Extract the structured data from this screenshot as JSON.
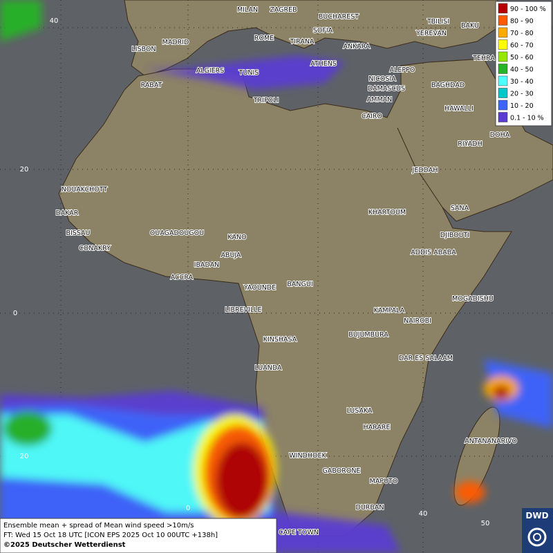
{
  "legend": {
    "items": [
      {
        "label": "90 - 100 %",
        "color": "#b40000"
      },
      {
        "label": "80 - 90",
        "color": "#ff5a00"
      },
      {
        "label": "70 - 80",
        "color": "#ffaa00"
      },
      {
        "label": "60 - 70",
        "color": "#ffff00"
      },
      {
        "label": "50 - 60",
        "color": "#96e600"
      },
      {
        "label": "40 - 50",
        "color": "#28b428"
      },
      {
        "label": "30 - 40",
        "color": "#50ffff"
      },
      {
        "label": "20 - 30",
        "color": "#00c8c8"
      },
      {
        "label": "10 - 20",
        "color": "#3c64ff"
      },
      {
        "label": "0.1 - 10 %",
        "color": "#5a3cd2"
      }
    ]
  },
  "cities": [
    "MILAN",
    "ZAGREB",
    "BUCHAREST",
    "BAKU",
    "TBILISI",
    "YEREVAN",
    "TEHRA",
    "MADRID",
    "LISBON",
    "ROME",
    "SOFIA",
    "TIRANA",
    "ANKARA",
    "ATHENS",
    "ALGIERS",
    "TUNIS",
    "RABAT",
    "ALEPPO",
    "NICOSIA",
    "BAGHDAD",
    "DAMASCUS",
    "AMMAN",
    "HAWALLI",
    "DOHA",
    "TRIPOLI",
    "CAIRO",
    "RIYADH",
    "JEDDAH",
    "NOUAKCHOTT",
    "DAKAR",
    "BISSAU",
    "CONAKRY",
    "OUAGADOUGOU",
    "KANO",
    "ABUJA",
    "IBADAN",
    "ACCRA",
    "YAOUNDE",
    "BANGUI",
    "KHARTOUM",
    "SANA",
    "DJIBOUTI",
    "ADDIS ABABA",
    "MOGADISHU",
    "LIBREVILLE",
    "KAMPALA",
    "NAIROBI",
    "KINSHASA",
    "BUJUMBURA",
    "DAR ES SALAAM",
    "LUANDA",
    "LUSAKA",
    "HARARE",
    "ANTANANARIVO",
    "WINDHOEK",
    "GABORONE",
    "MAPUTO",
    "DURBAN",
    "CAPE TOWN"
  ],
  "lat_labels": [
    40,
    20,
    0,
    20
  ],
  "lon_labels": [
    0,
    40,
    50
  ],
  "footer": {
    "line1": "Ensemble mean + spread of Mean wind speed >10m/s",
    "line2": "FT: Wed 15 Oct 18 UTC [ICON EPS 2025 Oct 10 00UTC +138h]",
    "line3": "©2025 Deutscher Wetterdienst"
  },
  "logo": "DWD"
}
